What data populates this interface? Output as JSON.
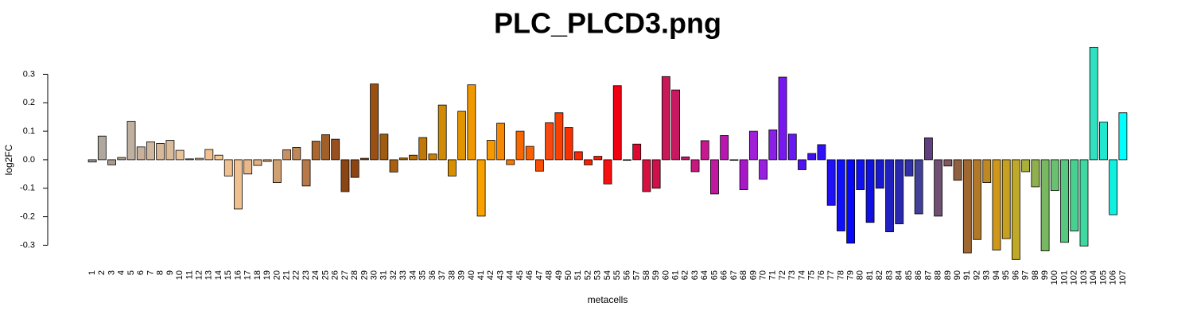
{
  "chart_data": {
    "type": "bar",
    "title": "PLC_PLCD3.png",
    "x_label": "metacells",
    "y_label": "log2FC",
    "categories": [
      "1",
      "2",
      "3",
      "4",
      "5",
      "6",
      "7",
      "8",
      "9",
      "10",
      "11",
      "12",
      "13",
      "14",
      "15",
      "16",
      "17",
      "18",
      "19",
      "20",
      "21",
      "22",
      "23",
      "24",
      "25",
      "26",
      "27",
      "28",
      "29",
      "30",
      "31",
      "32",
      "33",
      "34",
      "35",
      "36",
      "37",
      "38",
      "39",
      "40",
      "41",
      "42",
      "43",
      "44",
      "45",
      "46",
      "47",
      "48",
      "49",
      "50",
      "51",
      "52",
      "53",
      "54",
      "55",
      "56",
      "57",
      "58",
      "59",
      "60",
      "61",
      "62",
      "63",
      "64",
      "65",
      "66",
      "67",
      "68",
      "69",
      "70",
      "71",
      "72",
      "73",
      "74",
      "75",
      "76",
      "77",
      "78",
      "79",
      "80",
      "81",
      "82",
      "83",
      "84",
      "85",
      "86",
      "87",
      "88",
      "89",
      "90",
      "91",
      "92",
      "93",
      "94",
      "95",
      "96",
      "97",
      "98",
      "99",
      "100",
      "101",
      "102",
      "103",
      "104",
      "105",
      "106",
      "107"
    ],
    "values": [
      -0.008,
      0.083,
      -0.018,
      0.008,
      0.135,
      0.045,
      0.063,
      0.057,
      0.068,
      0.033,
      0.003,
      0.005,
      0.036,
      0.016,
      -0.057,
      -0.173,
      -0.05,
      -0.02,
      -0.006,
      -0.08,
      0.035,
      0.043,
      -0.092,
      0.065,
      0.088,
      0.072,
      -0.112,
      -0.062,
      0.005,
      0.266,
      0.09,
      -0.043,
      0.006,
      0.016,
      0.078,
      0.02,
      0.192,
      -0.057,
      0.17,
      0.263,
      -0.198,
      0.068,
      0.128,
      -0.017,
      0.1,
      0.047,
      -0.04,
      0.13,
      0.165,
      0.113,
      0.028,
      -0.018,
      0.012,
      -0.085,
      0.26,
      -0.002,
      0.055,
      -0.112,
      -0.1,
      0.292,
      0.245,
      0.01,
      -0.042,
      0.067,
      -0.12,
      0.085,
      -0.002,
      -0.105,
      0.1,
      -0.068,
      0.105,
      0.29,
      0.09,
      -0.035,
      0.022,
      0.053,
      -0.16,
      -0.25,
      -0.293,
      -0.105,
      -0.22,
      -0.1,
      -0.253,
      -0.225,
      -0.057,
      -0.19,
      0.077,
      -0.198,
      -0.022,
      -0.072,
      -0.327,
      -0.28,
      -0.08,
      -0.317,
      -0.277,
      -0.35,
      -0.042,
      -0.095,
      -0.32,
      -0.108,
      -0.29,
      -0.25,
      -0.303,
      0.395,
      0.132,
      -0.193,
      0.165
    ],
    "colors": [
      "#a0a0a0",
      "#b0a8a0",
      "#a89c8c",
      "#b5a590",
      "#c0b0a0",
      "#c8b09a",
      "#d0b8a0",
      "#d8b898",
      "#dcbc98",
      "#e8c49c",
      "#ecc098",
      "#f0c49c",
      "#f0c090",
      "#f5c890",
      "#f0c090",
      "#f0c090",
      "#e8b888",
      "#e0b080",
      "#d8a878",
      "#d0a070",
      "#c89060",
      "#c08858",
      "#b87848",
      "#a86830",
      "#a06028",
      "#985020",
      "#8b4513",
      "#8b4513",
      "#904a10",
      "#9a5010",
      "#a05c10",
      "#a86010",
      "#b06a08",
      "#b87008",
      "#c07808",
      "#c88008",
      "#d08a05",
      "#d89000",
      "#e09400",
      "#f09800",
      "#f7a000",
      "#f89800",
      "#f88800",
      "#f87800",
      "#f86800",
      "#f86000",
      "#f85000",
      "#f84810",
      "#f84000",
      "#f83000",
      "#f82800",
      "#f82000",
      "#f81808",
      "#f81010",
      "#f00010",
      "#e80828",
      "#e00830",
      "#d81040",
      "#d01048",
      "#c81858",
      "#c81860",
      "#c81870",
      "#c81880",
      "#c81890",
      "#c018a0",
      "#b818b0",
      "#b018b8",
      "#a818c8",
      "#a020d8",
      "#9820e0",
      "#8820e8",
      "#7818f0",
      "#6818f0",
      "#5010f0",
      "#4010f0",
      "#3010f8",
      "#2010f8",
      "#1010f8",
      "#0808f8",
      "#1010f0",
      "#1010e0",
      "#1818d0",
      "#2020c0",
      "#2828b0",
      "#3030a8",
      "#404098",
      "#604080",
      "#705070",
      "#805860",
      "#906040",
      "#a06830",
      "#b07828",
      "#c08820",
      "#d09818",
      "#c8a020",
      "#c0a828",
      "#a8b038",
      "#90b050",
      "#78b860",
      "#68c070",
      "#58c880",
      "#48d090",
      "#40d8a0",
      "#30e0c0",
      "#20e8d0",
      "#10f0e0",
      "#00ffff"
    ],
    "ylim": [
      -0.37,
      0.41
    ],
    "yticks": [
      -0.3,
      -0.2,
      -0.1,
      {
        "value": 0,
        "label": "0.0"
      },
      0.1,
      0.2,
      0.3
    ]
  }
}
